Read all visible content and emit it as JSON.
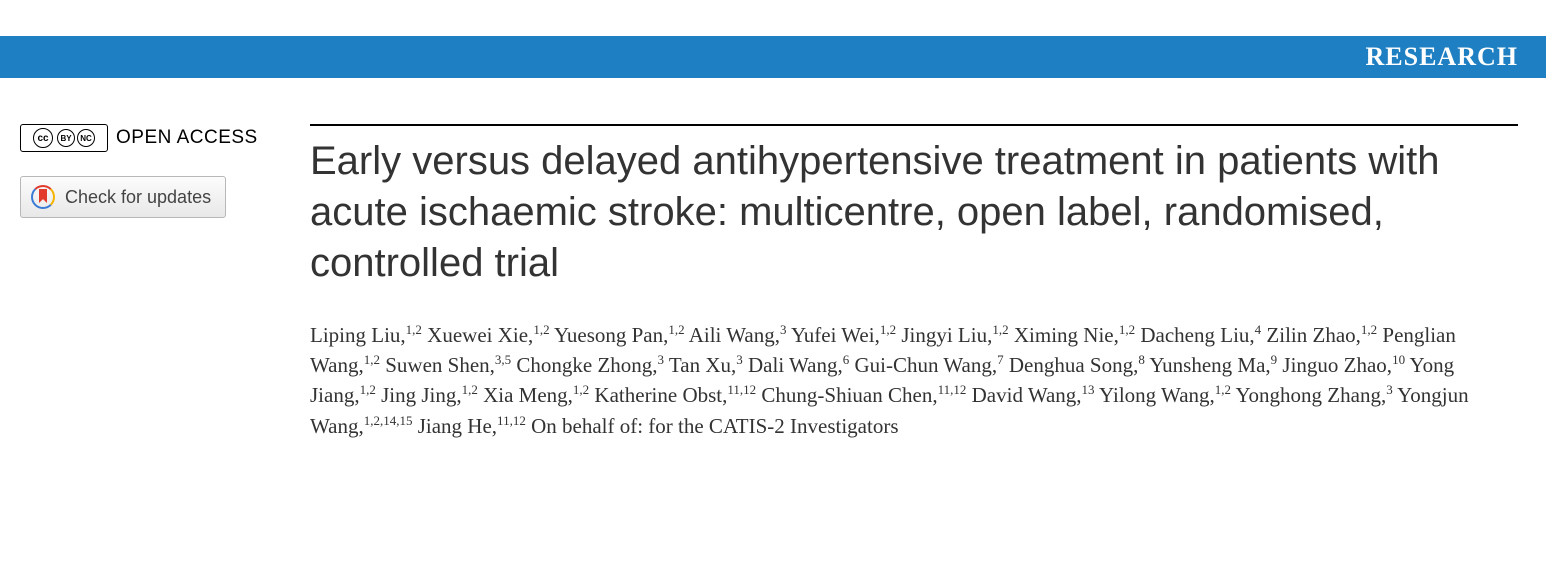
{
  "banner": {
    "label": "RESEARCH",
    "bg_color": "#1e7fc2",
    "text_color": "#ffffff"
  },
  "sidebar": {
    "open_access_label": "OPEN ACCESS",
    "cc_main": "cc",
    "cc_by": "BY",
    "cc_nc": "NC",
    "check_updates_label": "Check for updates"
  },
  "article": {
    "title": "Early versus delayed antihypertensive treatment in patients with acute ischaemic stroke: multicentre, open label, randomised, controlled trial",
    "authors": [
      {
        "name": "Liping Liu",
        "aff": "1,2"
      },
      {
        "name": "Xuewei Xie",
        "aff": "1,2"
      },
      {
        "name": "Yuesong Pan",
        "aff": "1,2"
      },
      {
        "name": "Aili Wang",
        "aff": "3"
      },
      {
        "name": "Yufei Wei",
        "aff": "1,2"
      },
      {
        "name": "Jingyi Liu",
        "aff": "1,2"
      },
      {
        "name": "Ximing Nie",
        "aff": "1,2"
      },
      {
        "name": "Dacheng Liu",
        "aff": "4"
      },
      {
        "name": "Zilin Zhao",
        "aff": "1,2"
      },
      {
        "name": "Penglian Wang",
        "aff": "1,2"
      },
      {
        "name": "Suwen Shen",
        "aff": "3,5"
      },
      {
        "name": "Chongke Zhong",
        "aff": "3"
      },
      {
        "name": "Tan Xu",
        "aff": "3"
      },
      {
        "name": "Dali Wang",
        "aff": "6"
      },
      {
        "name": "Gui-Chun Wang",
        "aff": "7"
      },
      {
        "name": "Denghua Song",
        "aff": "8"
      },
      {
        "name": "Yunsheng Ma",
        "aff": "9"
      },
      {
        "name": "Jinguo Zhao",
        "aff": "10"
      },
      {
        "name": "Yong Jiang",
        "aff": "1,2"
      },
      {
        "name": "Jing Jing",
        "aff": "1,2"
      },
      {
        "name": "Xia Meng",
        "aff": "1,2"
      },
      {
        "name": "Katherine Obst",
        "aff": "11,12"
      },
      {
        "name": "Chung-Shiuan Chen",
        "aff": "11,12"
      },
      {
        "name": "David Wang",
        "aff": "13"
      },
      {
        "name": "Yilong Wang",
        "aff": "1,2"
      },
      {
        "name": "Yonghong Zhang",
        "aff": "3"
      },
      {
        "name": "Yongjun Wang",
        "aff": "1,2,14,15"
      },
      {
        "name": "Jiang He",
        "aff": "11,12"
      }
    ],
    "tail": "On behalf of: for the CATIS-2 Investigators"
  },
  "colors": {
    "text": "#333333",
    "rule": "#000000",
    "button_border": "#b8b8b8"
  }
}
